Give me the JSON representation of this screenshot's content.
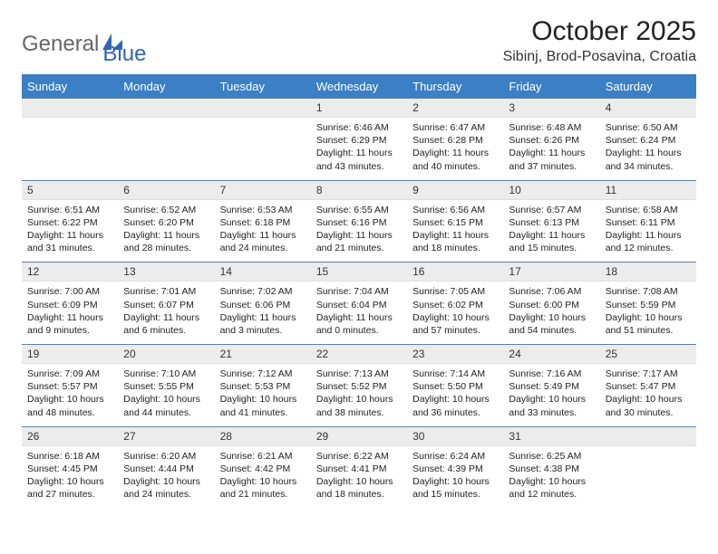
{
  "brand": {
    "name1": "General",
    "name2": "Blue"
  },
  "title": "October 2025",
  "location": "Sibinj, Brod-Posavina, Croatia",
  "colors": {
    "header_bg": "#3b7fc4",
    "header_text": "#ffffff",
    "row_border": "#5f7fa7",
    "daynum_bg": "#ececec",
    "text": "#222222",
    "logo_gray": "#666666",
    "logo_blue": "#2f66b3"
  },
  "weekdays": [
    "Sunday",
    "Monday",
    "Tuesday",
    "Wednesday",
    "Thursday",
    "Friday",
    "Saturday"
  ],
  "weeks": [
    [
      {
        "n": "",
        "sr": "",
        "ss": "",
        "dl": ""
      },
      {
        "n": "",
        "sr": "",
        "ss": "",
        "dl": ""
      },
      {
        "n": "",
        "sr": "",
        "ss": "",
        "dl": ""
      },
      {
        "n": "1",
        "sr": "Sunrise: 6:46 AM",
        "ss": "Sunset: 6:29 PM",
        "dl": "Daylight: 11 hours and 43 minutes."
      },
      {
        "n": "2",
        "sr": "Sunrise: 6:47 AM",
        "ss": "Sunset: 6:28 PM",
        "dl": "Daylight: 11 hours and 40 minutes."
      },
      {
        "n": "3",
        "sr": "Sunrise: 6:48 AM",
        "ss": "Sunset: 6:26 PM",
        "dl": "Daylight: 11 hours and 37 minutes."
      },
      {
        "n": "4",
        "sr": "Sunrise: 6:50 AM",
        "ss": "Sunset: 6:24 PM",
        "dl": "Daylight: 11 hours and 34 minutes."
      }
    ],
    [
      {
        "n": "5",
        "sr": "Sunrise: 6:51 AM",
        "ss": "Sunset: 6:22 PM",
        "dl": "Daylight: 11 hours and 31 minutes."
      },
      {
        "n": "6",
        "sr": "Sunrise: 6:52 AM",
        "ss": "Sunset: 6:20 PM",
        "dl": "Daylight: 11 hours and 28 minutes."
      },
      {
        "n": "7",
        "sr": "Sunrise: 6:53 AM",
        "ss": "Sunset: 6:18 PM",
        "dl": "Daylight: 11 hours and 24 minutes."
      },
      {
        "n": "8",
        "sr": "Sunrise: 6:55 AM",
        "ss": "Sunset: 6:16 PM",
        "dl": "Daylight: 11 hours and 21 minutes."
      },
      {
        "n": "9",
        "sr": "Sunrise: 6:56 AM",
        "ss": "Sunset: 6:15 PM",
        "dl": "Daylight: 11 hours and 18 minutes."
      },
      {
        "n": "10",
        "sr": "Sunrise: 6:57 AM",
        "ss": "Sunset: 6:13 PM",
        "dl": "Daylight: 11 hours and 15 minutes."
      },
      {
        "n": "11",
        "sr": "Sunrise: 6:58 AM",
        "ss": "Sunset: 6:11 PM",
        "dl": "Daylight: 11 hours and 12 minutes."
      }
    ],
    [
      {
        "n": "12",
        "sr": "Sunrise: 7:00 AM",
        "ss": "Sunset: 6:09 PM",
        "dl": "Daylight: 11 hours and 9 minutes."
      },
      {
        "n": "13",
        "sr": "Sunrise: 7:01 AM",
        "ss": "Sunset: 6:07 PM",
        "dl": "Daylight: 11 hours and 6 minutes."
      },
      {
        "n": "14",
        "sr": "Sunrise: 7:02 AM",
        "ss": "Sunset: 6:06 PM",
        "dl": "Daylight: 11 hours and 3 minutes."
      },
      {
        "n": "15",
        "sr": "Sunrise: 7:04 AM",
        "ss": "Sunset: 6:04 PM",
        "dl": "Daylight: 11 hours and 0 minutes."
      },
      {
        "n": "16",
        "sr": "Sunrise: 7:05 AM",
        "ss": "Sunset: 6:02 PM",
        "dl": "Daylight: 10 hours and 57 minutes."
      },
      {
        "n": "17",
        "sr": "Sunrise: 7:06 AM",
        "ss": "Sunset: 6:00 PM",
        "dl": "Daylight: 10 hours and 54 minutes."
      },
      {
        "n": "18",
        "sr": "Sunrise: 7:08 AM",
        "ss": "Sunset: 5:59 PM",
        "dl": "Daylight: 10 hours and 51 minutes."
      }
    ],
    [
      {
        "n": "19",
        "sr": "Sunrise: 7:09 AM",
        "ss": "Sunset: 5:57 PM",
        "dl": "Daylight: 10 hours and 48 minutes."
      },
      {
        "n": "20",
        "sr": "Sunrise: 7:10 AM",
        "ss": "Sunset: 5:55 PM",
        "dl": "Daylight: 10 hours and 44 minutes."
      },
      {
        "n": "21",
        "sr": "Sunrise: 7:12 AM",
        "ss": "Sunset: 5:53 PM",
        "dl": "Daylight: 10 hours and 41 minutes."
      },
      {
        "n": "22",
        "sr": "Sunrise: 7:13 AM",
        "ss": "Sunset: 5:52 PM",
        "dl": "Daylight: 10 hours and 38 minutes."
      },
      {
        "n": "23",
        "sr": "Sunrise: 7:14 AM",
        "ss": "Sunset: 5:50 PM",
        "dl": "Daylight: 10 hours and 36 minutes."
      },
      {
        "n": "24",
        "sr": "Sunrise: 7:16 AM",
        "ss": "Sunset: 5:49 PM",
        "dl": "Daylight: 10 hours and 33 minutes."
      },
      {
        "n": "25",
        "sr": "Sunrise: 7:17 AM",
        "ss": "Sunset: 5:47 PM",
        "dl": "Daylight: 10 hours and 30 minutes."
      }
    ],
    [
      {
        "n": "26",
        "sr": "Sunrise: 6:18 AM",
        "ss": "Sunset: 4:45 PM",
        "dl": "Daylight: 10 hours and 27 minutes."
      },
      {
        "n": "27",
        "sr": "Sunrise: 6:20 AM",
        "ss": "Sunset: 4:44 PM",
        "dl": "Daylight: 10 hours and 24 minutes."
      },
      {
        "n": "28",
        "sr": "Sunrise: 6:21 AM",
        "ss": "Sunset: 4:42 PM",
        "dl": "Daylight: 10 hours and 21 minutes."
      },
      {
        "n": "29",
        "sr": "Sunrise: 6:22 AM",
        "ss": "Sunset: 4:41 PM",
        "dl": "Daylight: 10 hours and 18 minutes."
      },
      {
        "n": "30",
        "sr": "Sunrise: 6:24 AM",
        "ss": "Sunset: 4:39 PM",
        "dl": "Daylight: 10 hours and 15 minutes."
      },
      {
        "n": "31",
        "sr": "Sunrise: 6:25 AM",
        "ss": "Sunset: 4:38 PM",
        "dl": "Daylight: 10 hours and 12 minutes."
      },
      {
        "n": "",
        "sr": "",
        "ss": "",
        "dl": ""
      }
    ]
  ]
}
